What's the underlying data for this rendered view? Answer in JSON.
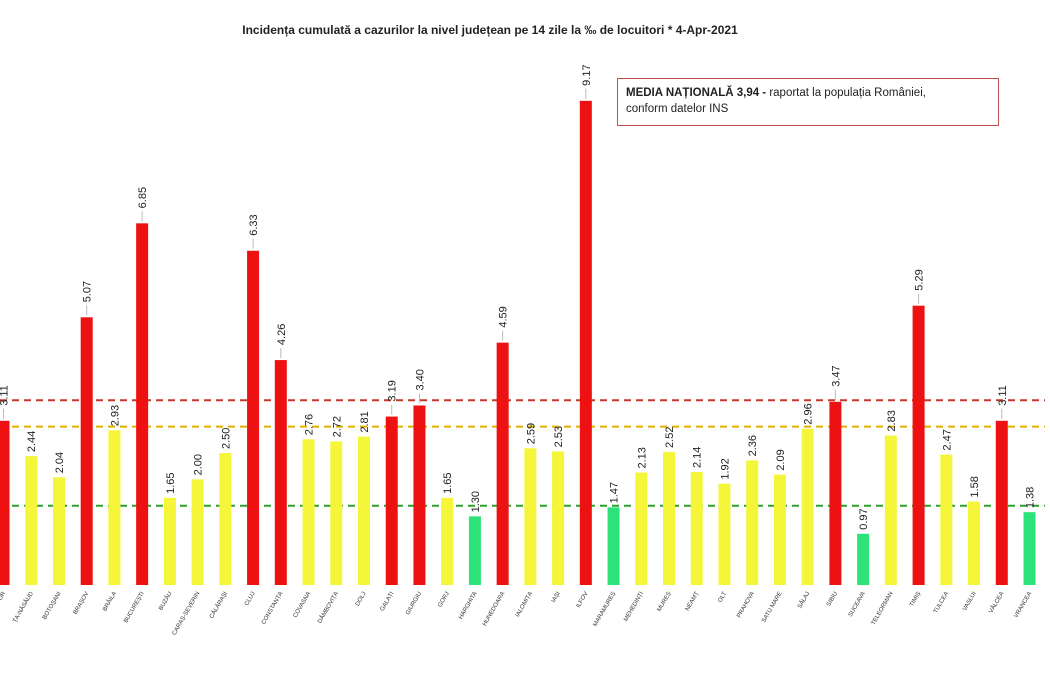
{
  "chart_data": {
    "type": "bar",
    "title": "Incidența cumulată a cazurilor la nivel județean pe 14 zile   la ‰ de locuitori  *   4-Apr-2021",
    "categories": [
      "BIHOR",
      "BISTRIȚA-NĂSĂUD",
      "BOTOȘANI",
      "BRAȘOV",
      "BRĂILA",
      "BUCUREȘTI",
      "BUZĂU",
      "CARAȘ-SEVERIN",
      "CĂLĂRAȘI",
      "CLUJ",
      "CONSTANȚA",
      "COVASNA",
      "DÂMBOVIȚA",
      "DOLJ",
      "GALAȚI",
      "GIURGIU",
      "GORJ",
      "HARGHITA",
      "HUNEDOARA",
      "IALOMIȚA",
      "IAȘI",
      "ILFOV",
      "MARAMUREȘ",
      "MEHEDINȚI",
      "MUREȘ",
      "NEAMȚ",
      "OLT",
      "PRAHOVA",
      "SATU MARE",
      "SĂLAJ",
      "SIBIU",
      "SUCEAVA",
      "TELEORMAN",
      "TIMIȘ",
      "TULCEA",
      "VASLUI",
      "VÂLCEA",
      "VRANCEA"
    ],
    "category_labels": [
      "OR",
      "ȚA-NĂSĂUD",
      "BOTOȘANI",
      "BRAȘOV",
      "BRĂILA",
      "BUCUREȘTI",
      "BUZĂU",
      "CARAȘ-SEVERIN",
      "CĂLĂRAȘI",
      "CLUJ",
      "CONSTANȚA",
      "COVASNA",
      "DÂMBOVIȚA",
      "DOLJ",
      "GALAȚI",
      "GIURGIU",
      "GORJ",
      "HARGHITA",
      "HUNEDOARA",
      "IALOMIȚA",
      "IAȘI",
      "ILFOV",
      "MARAMUREȘ",
      "MEHEDINȚI",
      "MUREȘ",
      "NEAMȚ",
      "OLT",
      "PRAHOVA",
      "SATU MARE",
      "SĂLAJ",
      "SIBIU",
      "SUCEAVA",
      "TELEORMAN",
      "TIMIȘ",
      "TULCEA",
      "VASLUI",
      "VÂLCEA",
      "VRANCEA"
    ],
    "values": [
      3.11,
      2.44,
      2.04,
      5.07,
      2.93,
      6.85,
      1.65,
      2.0,
      2.5,
      6.33,
      4.26,
      2.76,
      2.72,
      2.81,
      3.19,
      3.4,
      1.65,
      1.3,
      4.59,
      2.59,
      2.53,
      9.17,
      1.47,
      2.13,
      2.52,
      2.14,
      1.92,
      2.36,
      2.09,
      2.96,
      3.47,
      0.97,
      2.83,
      5.29,
      2.47,
      1.58,
      3.11,
      1.38
    ],
    "value_labels": [
      "3.11",
      "2.44",
      "2.04",
      "5.07",
      "2.93",
      "6.85",
      "1.65",
      "2.00",
      "2.50",
      "6.33",
      "4.26",
      "2.76",
      "2.72",
      "2.81",
      "3.19",
      "3.40",
      "1.65",
      "1.30",
      "4.59",
      "2.59",
      "2.53",
      "9.17",
      "1.47",
      "2.13",
      "2.52",
      "2.14",
      "1.92",
      "2.36",
      "2.09",
      "2.96",
      "3.47",
      "0.97",
      "2.83",
      "5.29",
      "2.47",
      "1.58",
      "3.11",
      "1.38"
    ],
    "thresholds": [
      {
        "value": 1.5,
        "color": "#2ca02c"
      },
      {
        "value": 3.0,
        "color": "#e0b000"
      },
      {
        "value": 3.5,
        "color": "#c0392b"
      }
    ],
    "bar_colors": {
      "green": "#2ee27a",
      "yellow": "#f5f53a",
      "red": "#ee1111"
    },
    "ylim": [
      0,
      10
    ],
    "grid": false,
    "legend": "none",
    "annotation": {
      "bold": "MEDIA NAȚIONALĂ 3,94 -",
      "line1_rest": " raportat la populația României,",
      "line2": "conform datelor INS"
    }
  }
}
